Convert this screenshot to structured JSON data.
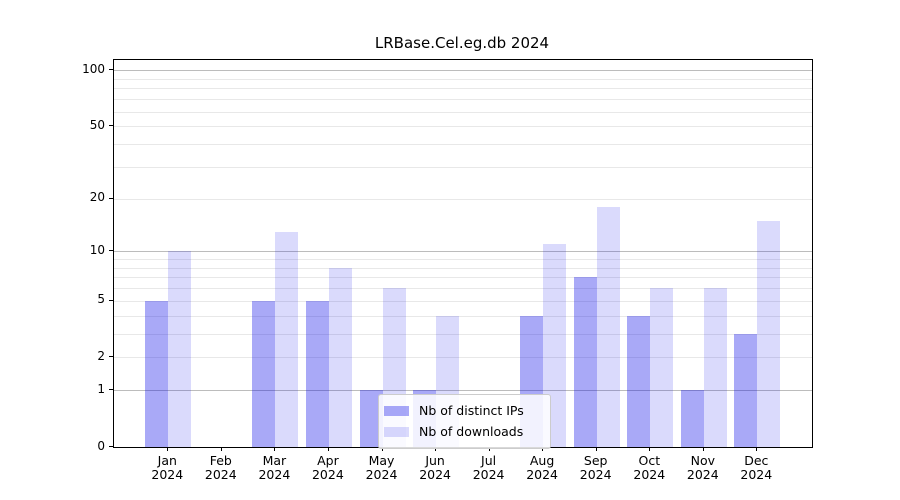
{
  "chart_data": {
    "type": "bar",
    "title": "LRBase.Cel.eg.db 2024",
    "x_categories": [
      "Jan",
      "Feb",
      "Mar",
      "Apr",
      "May",
      "Jun",
      "Jul",
      "Aug",
      "Sep",
      "Oct",
      "Nov",
      "Dec"
    ],
    "x_year": "2024",
    "series": [
      {
        "name": "Nb of distinct IPs",
        "values": [
          5,
          0,
          5,
          5,
          1,
          1,
          0,
          4,
          7,
          4,
          1,
          3
        ],
        "color": "rgba(9,9,232,0.35)"
      },
      {
        "name": "Nb of downloads",
        "values": [
          10,
          0,
          13,
          8,
          6,
          4,
          0,
          11,
          18,
          6,
          6,
          15
        ],
        "color": "rgba(9,9,232,0.15)"
      }
    ],
    "yscale": "log1p",
    "ylim": [
      0,
      113.6
    ],
    "ytick_labels": [
      "0",
      "1",
      "2",
      "5",
      "10",
      "20",
      "50",
      "100"
    ],
    "ytick_values": [
      0,
      1,
      2,
      5,
      10,
      20,
      50,
      100
    ],
    "grid_major_values": [
      1,
      10,
      100
    ],
    "grid_minor_values": [
      2,
      3,
      4,
      5,
      6,
      7,
      8,
      9,
      20,
      30,
      40,
      50,
      60,
      70,
      80,
      90
    ],
    "grid_on": true,
    "legend": {
      "position": "lower-center",
      "entries": [
        "Nb of distinct IPs",
        "Nb of downloads"
      ]
    },
    "colors": {
      "grid_major": "#bcbcbc",
      "grid_minor": "#e8e8e8",
      "axis": "#000000",
      "legend_border": "#cccccc"
    }
  }
}
